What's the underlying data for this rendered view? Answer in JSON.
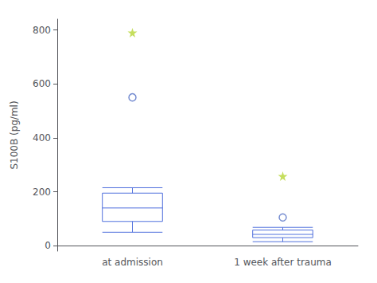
{
  "chart_data": {
    "type": "boxplot",
    "categories": [
      "at admission",
      "1 week after trauma"
    ],
    "ylabel": "S100B (pg/ml)",
    "ylim": [
      -20,
      840
    ],
    "yticks": [
      0,
      200,
      400,
      600,
      800
    ],
    "grid": false,
    "series": [
      {
        "type": "boxplot",
        "values": [
          [
            50,
            90,
            140,
            195,
            215
          ],
          [
            15,
            30,
            42,
            58,
            68
          ]
        ]
      },
      {
        "type": "scatter",
        "marker": "circle",
        "values": [
          550,
          105
        ]
      },
      {
        "type": "scatter",
        "marker": "star",
        "values": [
          790,
          258
        ]
      }
    ]
  }
}
